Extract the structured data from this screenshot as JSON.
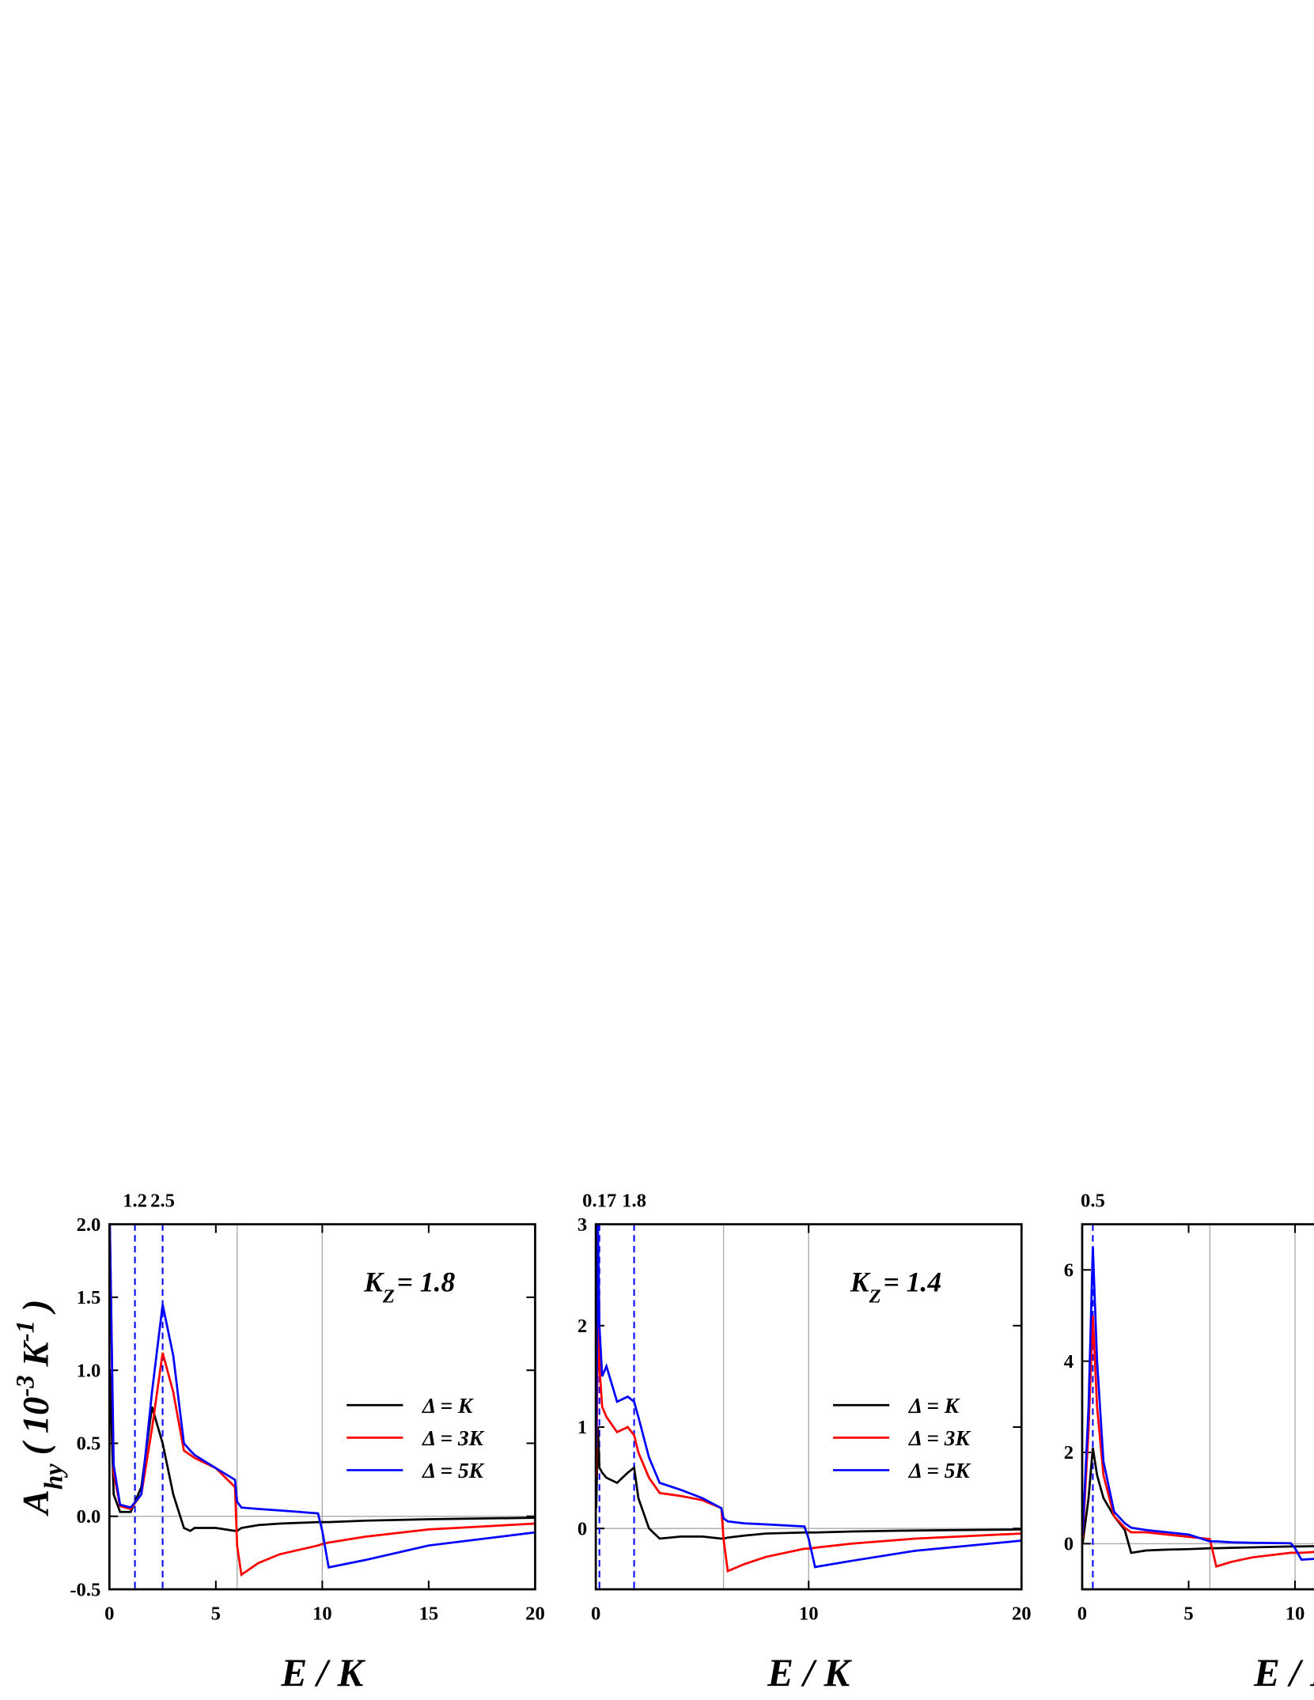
{
  "chart_data": [
    {
      "type": "line",
      "xlabel": "E / K",
      "ylabel": [
        {
          "text": "A",
          "shift": "base"
        },
        {
          "text": "hy",
          "shift": "sub"
        },
        {
          "text": "( 10",
          "shift": "base"
        },
        {
          "text": "-3",
          "shift": "sup"
        },
        {
          "text": "K",
          "shift": "base"
        },
        {
          "text": "-1",
          "shift": "sup"
        },
        {
          "text": ")",
          "shift": "base"
        }
      ],
      "annotation": {
        "text": "K",
        "sub": "Z",
        "rest": "= 1.8"
      },
      "legend": "center right",
      "xlim": [
        0,
        20
      ],
      "ylim": [
        -0.5,
        2.0
      ],
      "xticks": [
        0,
        5,
        10,
        15,
        20
      ],
      "yticks": [
        -0.5,
        {
          "value": 0,
          "label": "0.0"
        },
        0.5,
        {
          "value": 1,
          "label": "1.0"
        },
        1.5,
        {
          "value": 2,
          "label": "2.0"
        }
      ],
      "vlines": [
        1.2,
        2.5
      ],
      "vline_color": "#0000ff",
      "reflines_x": [
        6,
        10
      ],
      "refline_y": 0,
      "x": [
        0.02,
        0.2,
        0.5,
        1,
        1.5,
        2,
        2.5,
        3,
        3.5,
        3.8,
        4,
        5,
        5.9,
        6.0,
        6.2,
        7,
        8,
        9.8,
        10.0,
        10.3,
        12,
        15,
        20
      ],
      "series": [
        {
          "name": "Δ = K",
          "color": "#000000",
          "values": [
            1.0,
            0.15,
            0.03,
            0.03,
            0.2,
            0.75,
            0.5,
            0.15,
            -0.08,
            -0.1,
            -0.08,
            -0.08,
            -0.1,
            -0.1,
            -0.08,
            -0.06,
            -0.05,
            -0.04,
            -0.04,
            -0.04,
            -0.03,
            -0.02,
            -0.01
          ]
        },
        {
          "name": "Δ = 3K",
          "color": "#ff0000",
          "values": [
            2.0,
            0.3,
            0.07,
            0.05,
            0.15,
            0.6,
            1.12,
            0.85,
            0.45,
            0.42,
            0.4,
            0.33,
            0.2,
            -0.2,
            -0.4,
            -0.32,
            -0.26,
            -0.2,
            -0.19,
            -0.18,
            -0.14,
            -0.09,
            -0.05
          ]
        },
        {
          "name": "Δ = 5K",
          "color": "#0000ff",
          "values": [
            2.0,
            0.35,
            0.08,
            0.06,
            0.15,
            0.85,
            1.45,
            1.1,
            0.5,
            0.45,
            0.42,
            0.33,
            0.25,
            0.1,
            0.06,
            0.05,
            0.04,
            0.02,
            -0.1,
            -0.35,
            -0.3,
            -0.2,
            -0.11
          ]
        }
      ]
    },
    {
      "type": "line",
      "xlabel": "E / K",
      "annotation": {
        "text": "K",
        "sub": "Z",
        "rest": "= 1.4"
      },
      "legend": "center right",
      "xlim": [
        0,
        20
      ],
      "ylim": [
        -0.6,
        3
      ],
      "xticks": [
        0,
        10,
        20
      ],
      "yticks": [
        0,
        1,
        2,
        3
      ],
      "vlines": [
        0.17,
        1.8
      ],
      "vline_color": "#0000ff",
      "reflines_x": [
        6,
        10
      ],
      "refline_y": 0,
      "x": [
        0.02,
        0.1,
        0.17,
        0.3,
        0.5,
        1,
        1.5,
        1.8,
        2,
        2.5,
        3,
        4,
        5,
        5.9,
        6.0,
        6.2,
        7,
        8,
        9.8,
        10,
        10.3,
        12,
        15,
        20
      ],
      "series": [
        {
          "name": "Δ = K",
          "color": "#000000",
          "values": [
            0.2,
            1.0,
            0.6,
            0.55,
            0.5,
            0.45,
            0.55,
            0.6,
            0.3,
            0,
            -0.1,
            -0.08,
            -0.08,
            -0.1,
            -0.1,
            -0.09,
            -0.07,
            -0.05,
            -0.04,
            -0.04,
            -0.04,
            -0.03,
            -0.02,
            -0.01
          ]
        },
        {
          "name": "Δ = 3K",
          "color": "#ff0000",
          "values": [
            0.5,
            2.0,
            1.6,
            1.2,
            1.1,
            0.95,
            1.0,
            0.92,
            0.75,
            0.5,
            0.35,
            0.32,
            0.28,
            0.2,
            -0.1,
            -0.42,
            -0.35,
            -0.28,
            -0.2,
            -0.2,
            -0.19,
            -0.15,
            -0.1,
            -0.05
          ]
        },
        {
          "name": "Δ = 5K",
          "color": "#0000ff",
          "values": [
            0.8,
            3.0,
            2.0,
            1.5,
            1.6,
            1.25,
            1.3,
            1.25,
            1.1,
            0.7,
            0.45,
            0.38,
            0.3,
            0.2,
            0.1,
            0.07,
            0.05,
            0.04,
            0.02,
            -0.1,
            -0.38,
            -0.32,
            -0.22,
            -0.12
          ]
        }
      ]
    },
    {
      "type": "line",
      "xlabel": "E / K",
      "xlim": [
        0,
        20
      ],
      "ylim": [
        -1,
        7
      ],
      "xticks": [
        0,
        5,
        10
      ],
      "yticks": [
        0,
        2,
        4,
        6
      ],
      "vlines": [
        0.5
      ],
      "vline_color": "#0000ff",
      "reflines_x": [
        6,
        10
      ],
      "refline_y": 0,
      "x": [
        0.02,
        0.3,
        0.5,
        0.7,
        1,
        1.5,
        2,
        2.3,
        3,
        4,
        5,
        6,
        6.3,
        7,
        8,
        9.8,
        10,
        10.3,
        12,
        15,
        20
      ],
      "series": [
        {
          "name": "Δ = K",
          "color": "#000000",
          "values": [
            0,
            1,
            2.1,
            1.5,
            1.0,
            0.6,
            0.3,
            -0.2,
            -0.15,
            -0.13,
            -0.12,
            -0.1,
            -0.1,
            -0.09,
            -0.08,
            -0.06,
            -0.06,
            -0.06,
            -0.05,
            -0.03,
            -0.02
          ]
        },
        {
          "name": "Δ = 3K",
          "color": "#ff0000",
          "values": [
            0.1,
            2.5,
            5.0,
            3.0,
            1.5,
            0.6,
            0.35,
            0.25,
            0.25,
            0.2,
            0.15,
            0.1,
            -0.5,
            -0.4,
            -0.3,
            -0.2,
            -0.2,
            -0.2,
            -0.15,
            -0.1,
            -0.05
          ]
        },
        {
          "name": "Δ = 5K",
          "color": "#0000ff",
          "values": [
            0.2,
            3,
            6.5,
            4,
            1.8,
            0.7,
            0.45,
            0.35,
            0.3,
            0.25,
            0.2,
            0.05,
            0.05,
            0.03,
            0.02,
            0.01,
            -0.1,
            -0.35,
            -0.3,
            -0.2,
            -0.12
          ]
        }
      ]
    }
  ]
}
